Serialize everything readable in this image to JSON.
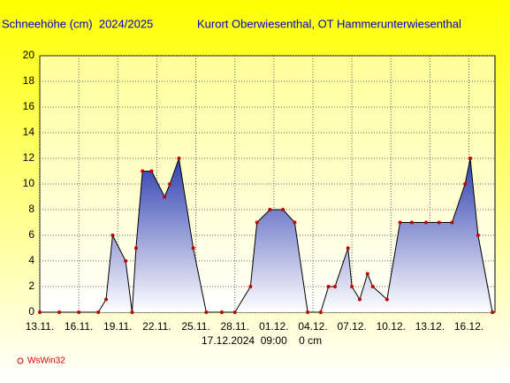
{
  "chart_data": {
    "type": "area",
    "title": "Schneehöhe (cm)  2024/2025",
    "subtitle": "Kurort Oberwiesenthal, OT Hammerunterwiesenthal",
    "annotation": "17.12.2024  09:00    0 cm",
    "credit": "WsWin32",
    "x": [
      0,
      1.5,
      3,
      4.5,
      5.1,
      5.6,
      6.6,
      7.1,
      7.4,
      7.9,
      8.6,
      9.6,
      10,
      10.7,
      11.8,
      12.8,
      14,
      15,
      16.2,
      16.7,
      17.7,
      18.7,
      19.6,
      20.6,
      21.6,
      22.2,
      22.7,
      23.7,
      24,
      24.6,
      25.2,
      25.6,
      26.7,
      27.7,
      28.6,
      29.7,
      30.7,
      31.7,
      32.7,
      33.1,
      33.7,
      34.8
    ],
    "y": [
      0,
      0,
      0,
      0,
      1,
      6,
      4,
      0,
      5,
      11,
      11,
      9,
      10,
      12,
      5,
      0,
      0,
      0,
      2,
      7,
      8,
      8,
      7,
      0,
      0,
      2,
      2,
      5,
      2,
      1,
      3,
      2,
      1,
      7,
      7,
      7,
      7,
      7,
      10,
      12,
      6,
      0
    ],
    "color": "#3040b0",
    "xlim": [
      0,
      35
    ],
    "xticks": [
      {
        "value": 0,
        "label": "13.11."
      },
      {
        "value": 3,
        "label": "16.11."
      },
      {
        "value": 6,
        "label": "19.11."
      },
      {
        "value": 9,
        "label": "22.11."
      },
      {
        "value": 12,
        "label": "25.11."
      },
      {
        "value": 15,
        "label": "28.11."
      },
      {
        "value": 18,
        "label": "01.12."
      },
      {
        "value": 21,
        "label": "04.12."
      },
      {
        "value": 24,
        "label": "07.12."
      },
      {
        "value": 27,
        "label": "10.12."
      },
      {
        "value": 30,
        "label": "13.12."
      },
      {
        "value": 33,
        "label": "16.12."
      }
    ],
    "ylim": [
      0,
      20
    ],
    "yticks": [
      0,
      2,
      4,
      6,
      8,
      10,
      12,
      14,
      16,
      18,
      20
    ],
    "grid": true
  }
}
